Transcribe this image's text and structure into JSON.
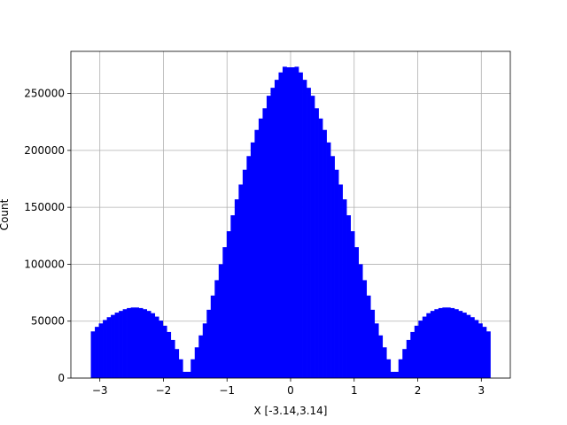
{
  "chart_data": {
    "type": "bar",
    "title": "",
    "xlabel": "X [-3.14,3.14]",
    "ylabel": "Count",
    "xlim": [
      -3.4557,
      3.4557
    ],
    "ylim": [
      0,
      287000
    ],
    "grid": true,
    "bar_color": "#0000ff",
    "bin_range": [
      -3.14159,
      3.14159
    ],
    "bin_count": 100,
    "x_ticks": [
      -3,
      -2,
      -1,
      0,
      1,
      2,
      3
    ],
    "x_tick_labels": [
      "−3",
      "−2",
      "−1",
      "0",
      "1",
      "2",
      "3"
    ],
    "y_ticks": [
      0,
      50000,
      100000,
      150000,
      200000,
      250000
    ],
    "y_tick_labels": [
      "0",
      "50000",
      "100000",
      "150000",
      "200000",
      "250000"
    ],
    "series": [
      {
        "values": [
          41000,
          45000,
          48000,
          51000,
          53500,
          55500,
          57500,
          59000,
          60500,
          61500,
          62000,
          62000,
          61500,
          60500,
          59000,
          57000,
          54000,
          50500,
          46000,
          40500,
          33500,
          25500,
          16500,
          5500,
          5500,
          16500,
          27000,
          37500,
          48000,
          60000,
          72500,
          86000,
          100000,
          115000,
          129000,
          143000,
          157000,
          170000,
          183000,
          195000,
          207000,
          218000,
          228000,
          237000,
          248000,
          255000,
          262000,
          268500,
          273500,
          273000,
          273000,
          273500,
          268500,
          262000,
          255000,
          248000,
          237000,
          228000,
          218000,
          207000,
          195000,
          183000,
          170000,
          157000,
          143000,
          129000,
          115000,
          100000,
          86000,
          72500,
          60000,
          48000,
          37500,
          27000,
          16500,
          5500,
          5500,
          16500,
          25500,
          33500,
          40500,
          46000,
          50500,
          54000,
          57000,
          59000,
          60500,
          61500,
          62000,
          62000,
          61500,
          60500,
          59000,
          57500,
          55500,
          53500,
          51000,
          48000,
          45000,
          41000
        ]
      }
    ]
  }
}
